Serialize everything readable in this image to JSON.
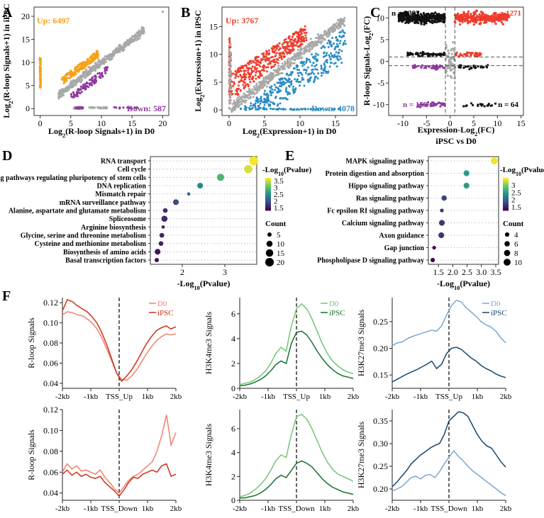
{
  "panels": {
    "A": "A",
    "B": "B",
    "C": "C",
    "D": "D",
    "E": "E",
    "F": "F"
  },
  "colors": {
    "up_A": "#f5a31a",
    "down": "#8e3a9e",
    "grey": "#a8a8a8",
    "up_red": "#ef3b2c",
    "down_blue": "#2b8cc4",
    "black": "#111111",
    "d0_red": "#f08070",
    "ipsc_red": "#d03018",
    "d0_green": "#74c476",
    "ipsc_green": "#16702e",
    "d0_blue": "#7ba6cf",
    "ipsc_blue": "#17476f",
    "vir_hi": "#fde725",
    "vir_mid1": "#5ec962",
    "vir_mid2": "#21918c",
    "vir_mid3": "#3b528b",
    "vir_lo": "#440154"
  },
  "chart_data": [
    {
      "panel": "A",
      "type": "scatter",
      "xlabel_main": "Log",
      "xlabel_sub": "2",
      "xlabel_rest": "(R-loop Signals+1) in D0",
      "ylabel_main": "Log",
      "ylabel_sub": "2",
      "ylabel_rest": "(R-loop Signals+1) in iPSC",
      "xlim": [
        -1,
        21
      ],
      "ylim": [
        -1.5,
        22
      ],
      "xticks": [
        "0",
        "5",
        "10",
        "15",
        "20"
      ],
      "yticks": [
        "0",
        "5",
        "10",
        "15",
        "20"
      ],
      "up_label": "Up: 6497",
      "down_label": "Down: 587",
      "series": [
        {
          "name": "Up",
          "n": 6497
        },
        {
          "name": "Down",
          "n": 587
        },
        {
          "name": "Not significant"
        }
      ]
    },
    {
      "panel": "B",
      "type": "scatter",
      "xlabel_main": "Log",
      "xlabel_sub": "2",
      "xlabel_rest": "(Expression+1) in D0",
      "ylabel_main": "Log",
      "ylabel_sub": "2",
      "ylabel_rest": "(Expression+1) in iPSC",
      "xlim": [
        -1,
        18
      ],
      "ylim": [
        -1,
        18.5
      ],
      "xticks": [
        "0",
        "5",
        "10",
        "15"
      ],
      "yticks": [
        "0",
        "5",
        "10",
        "15"
      ],
      "up_label": "Up: 3767",
      "down_label": "Down: 4078",
      "series": [
        {
          "name": "Up",
          "n": 3767
        },
        {
          "name": "Down",
          "n": 4078
        },
        {
          "name": "Not significant"
        }
      ]
    },
    {
      "panel": "C",
      "type": "scatter",
      "xlabel_main": "Expression-Log",
      "xlabel_sub": "2",
      "xlabel_rest": "(FC)",
      "xlabel2": "iPSC vs D0",
      "ylabel_main": "R-loop Signals-Log",
      "ylabel_sub": "2",
      "ylabel_rest": "(FC)",
      "xlim": [
        -13,
        15.5
      ],
      "ylim": [
        -12.5,
        12.5
      ],
      "xticks": [
        "-10",
        "-5",
        "0",
        "5",
        "10",
        "15"
      ],
      "yticks": [
        "-10",
        "-5",
        "0",
        "5",
        "10"
      ],
      "quadrants": [
        {
          "label": "n = 1392"
        },
        {
          "label": "n = 1271"
        },
        {
          "label": "n = 159"
        },
        {
          "label": "n = 64"
        }
      ]
    },
    {
      "panel": "D",
      "type": "scatter",
      "subtype": "dotplot",
      "xlabel_main": "-Log",
      "xlabel_sub": "10",
      "xlabel_rest": "(Pvalue)",
      "xlim": [
        1.25,
        3.75
      ],
      "xticks": [
        2,
        3
      ],
      "terms": [
        "RNA transport",
        "Cell cycle",
        "Signaling pathways regulating pluripotency of stem cells",
        "DNA replication",
        "Mismatch repair",
        "mRNA surveillance pathway",
        "Alanine, aspartate and glutamate metabolism",
        "Spliceosome",
        "Arginine biosynthesis",
        "Glycine, serine and threonine metabolism",
        "Cysteine and methionine metabolism",
        "Biosynthesis of amino acids",
        "Basal transcription factors"
      ],
      "values": [
        3.68,
        3.55,
        2.9,
        2.42,
        2.15,
        1.85,
        1.6,
        1.58,
        1.55,
        1.52,
        1.5,
        1.42,
        1.4
      ],
      "counts": [
        22,
        18,
        14,
        9,
        3,
        9,
        6,
        10,
        3,
        6,
        6,
        9,
        5
      ],
      "color_title_main": "-Log",
      "color_title_sub": "10",
      "color_title_rest": "(Pvalue)",
      "color_ticks": [
        3.5,
        3.0,
        2.5,
        2.0,
        1.5
      ],
      "color_range": [
        1.3,
        3.7
      ],
      "size_title": "Count",
      "size_ticks": [
        5,
        10,
        15,
        20
      ]
    },
    {
      "panel": "E",
      "type": "scatter",
      "subtype": "dotplot",
      "xlabel_main": "-Log",
      "xlabel_sub": "10",
      "xlabel_rest": "(Pvalue)",
      "xlim": [
        1.15,
        3.6
      ],
      "xticks": [
        1.5,
        2.0,
        2.5,
        3.0,
        3.5
      ],
      "terms": [
        "MAPK signaling pathway",
        "Protein digestion and absorption",
        "Hippo signaling pathway",
        "Ras signaling pathway",
        "Fc epsilon RI signaling pathway",
        "Calcium signaling pathway",
        "Axon guidance",
        "Gap junction",
        "Phospholipase D signaling pathway"
      ],
      "values": [
        3.45,
        2.48,
        2.48,
        1.7,
        1.62,
        1.62,
        1.6,
        1.35,
        1.3
      ],
      "counts": [
        10,
        7,
        7,
        6,
        3,
        7,
        7,
        3,
        4
      ],
      "color_title_main": "-Log",
      "color_title_sub": "10",
      "color_title_rest": "(Pvalue)",
      "color_ticks": [
        3,
        2.5,
        2,
        1.5
      ],
      "color_range": [
        1.25,
        3.5
      ],
      "size_title": "Count",
      "size_ticks": [
        4,
        6,
        8,
        10
      ]
    },
    {
      "panel": "F1",
      "type": "line",
      "ylabel": "R-loop Signals",
      "ylim": [
        0.035,
        0.125
      ],
      "yticks": [
        0.04,
        0.06,
        0.08,
        0.1,
        0.12
      ],
      "tick_labels": [
        "0.04",
        "0.06",
        "0.08",
        "0.10",
        "0.12"
      ],
      "xticks": [
        "-2kb",
        "-1kb",
        "TSS_Up",
        "1kb",
        "2kb"
      ],
      "series": [
        {
          "name": "D0",
          "values": [
            0.108,
            0.111,
            0.11,
            0.108,
            0.107,
            0.104,
            0.1,
            0.094,
            0.085,
            0.074,
            0.062,
            0.05,
            0.044,
            0.043,
            0.047,
            0.053,
            0.061,
            0.069,
            0.076,
            0.082,
            0.086,
            0.089,
            0.088,
            0.089
          ]
        },
        {
          "name": "iPSC",
          "values": [
            0.112,
            0.123,
            0.121,
            0.117,
            0.114,
            0.111,
            0.106,
            0.1,
            0.09,
            0.078,
            0.064,
            0.05,
            0.042,
            0.047,
            0.053,
            0.061,
            0.07,
            0.079,
            0.086,
            0.092,
            0.095,
            0.097,
            0.094,
            0.096
          ]
        }
      ]
    },
    {
      "panel": "F2",
      "type": "line",
      "ylabel": "H3K4me3 Signals",
      "ylim": [
        0,
        7.3
      ],
      "yticks": [
        0,
        2,
        4,
        6
      ],
      "tick_labels": [
        "0",
        "2",
        "4",
        "6"
      ],
      "xticks": [
        "-2kb",
        "-1kb",
        "TSS_Up",
        "1kb",
        "2kb"
      ],
      "series": [
        {
          "name": "D0",
          "values": [
            0.3,
            0.4,
            0.5,
            0.7,
            1.0,
            1.4,
            2.0,
            2.8,
            3.3,
            3.0,
            5.0,
            6.4,
            6.8,
            6.4,
            5.6,
            4.6,
            3.6,
            2.8,
            2.2,
            1.8,
            1.5,
            1.3,
            1.2
          ]
        },
        {
          "name": "iPSC",
          "values": [
            0.2,
            0.25,
            0.35,
            0.5,
            0.7,
            1.0,
            1.4,
            1.9,
            2.2,
            2.0,
            3.6,
            4.5,
            4.6,
            4.3,
            3.7,
            3.0,
            2.4,
            1.9,
            1.5,
            1.2,
            1.0,
            0.9,
            0.8
          ]
        }
      ]
    },
    {
      "panel": "F3",
      "type": "line",
      "ylabel": "H3K27me3 Signals",
      "ylim": [
        0.125,
        0.295
      ],
      "yticks": [
        0.15,
        0.2,
        0.25
      ],
      "tick_labels": [
        "0.15",
        "0.20",
        "0.25"
      ],
      "xticks": [
        "-2kb",
        "-1kb",
        "TSS_Up",
        "1kb",
        "2kb"
      ],
      "series": [
        {
          "name": "D0",
          "values": [
            0.205,
            0.21,
            0.212,
            0.218,
            0.222,
            0.225,
            0.228,
            0.231,
            0.234,
            0.232,
            0.242,
            0.262,
            0.28,
            0.29,
            0.287,
            0.276,
            0.268,
            0.26,
            0.25,
            0.244,
            0.24,
            0.232,
            0.22,
            0.21
          ]
        },
        {
          "name": "iPSC",
          "values": [
            0.137,
            0.142,
            0.147,
            0.152,
            0.156,
            0.16,
            0.165,
            0.17,
            0.176,
            0.162,
            0.17,
            0.19,
            0.2,
            0.202,
            0.198,
            0.19,
            0.182,
            0.176,
            0.168,
            0.162,
            0.158,
            0.152,
            0.148,
            0.145
          ]
        }
      ]
    },
    {
      "panel": "F4",
      "type": "line",
      "ylabel": "R-loop Signals",
      "ylim": [
        0.033,
        0.12
      ],
      "yticks": [
        0.04,
        0.06,
        0.08,
        0.1,
        0.12
      ],
      "tick_labels": [
        "0.04",
        "0.06",
        "0.08",
        "0.10",
        "0.12"
      ],
      "xticks": [
        "-2kb",
        "-1kb",
        "TSS_Down",
        "1kb",
        "2kb"
      ],
      "series": [
        {
          "name": "D0",
          "values": [
            0.06,
            0.068,
            0.063,
            0.066,
            0.061,
            0.062,
            0.06,
            0.058,
            0.062,
            0.055,
            0.05,
            0.044,
            0.04,
            0.046,
            0.052,
            0.056,
            0.058,
            0.062,
            0.066,
            0.07,
            0.08,
            0.095,
            0.115,
            0.086,
            0.098
          ]
        },
        {
          "name": "iPSC",
          "values": [
            0.058,
            0.062,
            0.057,
            0.06,
            0.056,
            0.058,
            0.055,
            0.054,
            0.056,
            0.05,
            0.046,
            0.042,
            0.037,
            0.043,
            0.05,
            0.055,
            0.054,
            0.058,
            0.06,
            0.062,
            0.06,
            0.066,
            0.068,
            0.056,
            0.058
          ]
        }
      ]
    },
    {
      "panel": "F5",
      "type": "line",
      "ylabel": "H3K4me3 Signals",
      "ylim": [
        0,
        7.6
      ],
      "yticks": [
        0,
        2,
        4,
        6
      ],
      "tick_labels": [
        "0",
        "2",
        "4",
        "6"
      ],
      "xticks": [
        "-2kb",
        "-1kb",
        "TSS_Down",
        "1kb",
        "2kb"
      ],
      "series": [
        {
          "name": "D0",
          "values": [
            0.3,
            0.4,
            0.6,
            0.9,
            1.3,
            1.8,
            2.5,
            3.3,
            3.8,
            3.6,
            5.5,
            7.0,
            7.2,
            6.8,
            6.0,
            5.0,
            4.0,
            3.2,
            2.6,
            2.2,
            2.0,
            1.8,
            1.6
          ]
        },
        {
          "name": "iPSC",
          "values": [
            0.2,
            0.2,
            0.3,
            0.4,
            0.6,
            0.9,
            1.3,
            1.8,
            2.1,
            1.9,
            2.5,
            3.1,
            3.3,
            3.1,
            2.8,
            2.3,
            1.8,
            1.4,
            1.1,
            0.9,
            0.7,
            0.6,
            0.5
          ]
        }
      ]
    },
    {
      "panel": "F6",
      "type": "line",
      "ylabel": "H3K27me3 Signals",
      "ylim": [
        0.175,
        0.375
      ],
      "yticks": [
        0.2,
        0.25,
        0.3,
        0.35
      ],
      "tick_labels": [
        "0.20",
        "0.25",
        "0.30",
        "0.35"
      ],
      "xticks": [
        "-2kb",
        "-1kb",
        "TSS_Down",
        "1kb",
        "2kb"
      ],
      "series": [
        {
          "name": "D0",
          "values": [
            0.195,
            0.2,
            0.205,
            0.215,
            0.225,
            0.228,
            0.222,
            0.23,
            0.232,
            0.225,
            0.238,
            0.255,
            0.27,
            0.284,
            0.272,
            0.262,
            0.25,
            0.24,
            0.232,
            0.224,
            0.216,
            0.208,
            0.2,
            0.192,
            0.185
          ]
        },
        {
          "name": "iPSC",
          "values": [
            0.205,
            0.215,
            0.228,
            0.24,
            0.255,
            0.265,
            0.275,
            0.282,
            0.29,
            0.296,
            0.3,
            0.32,
            0.35,
            0.36,
            0.37,
            0.368,
            0.36,
            0.34,
            0.32,
            0.305,
            0.295,
            0.29,
            0.275,
            0.26,
            0.248
          ]
        }
      ]
    }
  ]
}
